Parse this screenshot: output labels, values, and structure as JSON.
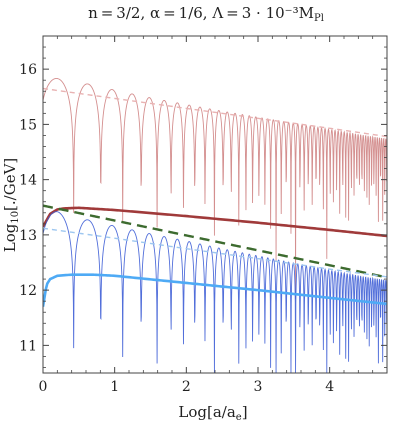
{
  "chart_data": {
    "type": "line",
    "title": "n = 3/2, α = 1/6, Λ = 3 · 10⁻³M",
    "title_subscript": "Pl",
    "xlabel": "Log[a/a",
    "xlabel_subscript": "e",
    "xlabel_tail": "]",
    "ylabel": "Log",
    "ylabel_subscript": "10",
    "ylabel_tail": "[./GeV]",
    "xlim": [
      0,
      4.8
    ],
    "ylim": [
      10.5,
      16.6
    ],
    "x_ticks": [
      0,
      1,
      2,
      3,
      4
    ],
    "y_ticks": [
      11,
      12,
      13,
      14,
      15,
      16
    ],
    "grid": false,
    "legend": "none",
    "colors": {
      "oscillating_upper": "#cf8383",
      "envelope_upper": "#e9b3b3",
      "thick_upper": "#a03a3a",
      "green_dashed": "#3d6b2f",
      "oscillating_lower": "#3e5ed6",
      "envelope_lower": "#9ec7f0",
      "thick_lower": "#4eaaf5"
    },
    "series": [
      {
        "style": "oscillating",
        "color_key": "oscillating_upper",
        "x": [
          0,
          0.5,
          1,
          1.5,
          2,
          2.5,
          3,
          3.5,
          4,
          4.5,
          4.8
        ],
        "y_max": [
          15.87,
          15.77,
          15.62,
          15.48,
          15.36,
          15.24,
          15.13,
          15.02,
          14.91,
          14.8,
          14.74
        ],
        "y_min": [
          10.8,
          10.8,
          10.8,
          10.8,
          10.8,
          10.8,
          10.8,
          10.8,
          10.8,
          10.8,
          10.8
        ]
      },
      {
        "style": "dashed",
        "color_key": "envelope_upper",
        "x": [
          0,
          1,
          2,
          3,
          4,
          4.8
        ],
        "y": [
          15.65,
          15.47,
          15.29,
          15.11,
          14.93,
          14.78
        ]
      },
      {
        "style": "thick",
        "color_key": "thick_upper",
        "x": [
          0,
          0.1,
          0.2,
          0.3,
          0.5,
          1,
          2,
          3,
          4,
          4.8
        ],
        "y": [
          13.15,
          13.38,
          13.46,
          13.48,
          13.49,
          13.45,
          13.34,
          13.22,
          13.09,
          12.98
        ]
      },
      {
        "style": "dashed",
        "color_key": "green_dashed",
        "x": [
          0,
          1,
          2,
          3,
          4,
          4.8
        ],
        "y": [
          13.53,
          13.26,
          12.99,
          12.72,
          12.45,
          12.23
        ]
      },
      {
        "style": "oscillating",
        "color_key": "oscillating_lower",
        "x": [
          0,
          0.2,
          0.5,
          1,
          1.5,
          2,
          2.5,
          3,
          3.5,
          4,
          4.5,
          4.8
        ],
        "y_max": [
          13.45,
          13.42,
          13.31,
          13.16,
          13.02,
          12.89,
          12.75,
          12.62,
          12.49,
          12.36,
          12.24,
          12.18
        ],
        "y_min": [
          10.5,
          10.5,
          10.5,
          10.5,
          10.5,
          10.5,
          10.5,
          10.5,
          10.5,
          10.5,
          10.5,
          10.5
        ]
      },
      {
        "style": "dashed",
        "color_key": "envelope_lower",
        "x": [
          0,
          1,
          2,
          3,
          4,
          4.8
        ],
        "y": [
          13.12,
          12.94,
          12.75,
          12.57,
          12.38,
          12.24
        ]
      },
      {
        "style": "thick",
        "color_key": "thick_lower",
        "x": [
          0,
          0.05,
          0.1,
          0.2,
          0.4,
          0.7,
          1,
          2,
          3,
          4,
          4.8
        ],
        "y": [
          11.7,
          12.1,
          12.2,
          12.26,
          12.28,
          12.28,
          12.26,
          12.13,
          12.0,
          11.86,
          11.75
        ]
      }
    ]
  }
}
